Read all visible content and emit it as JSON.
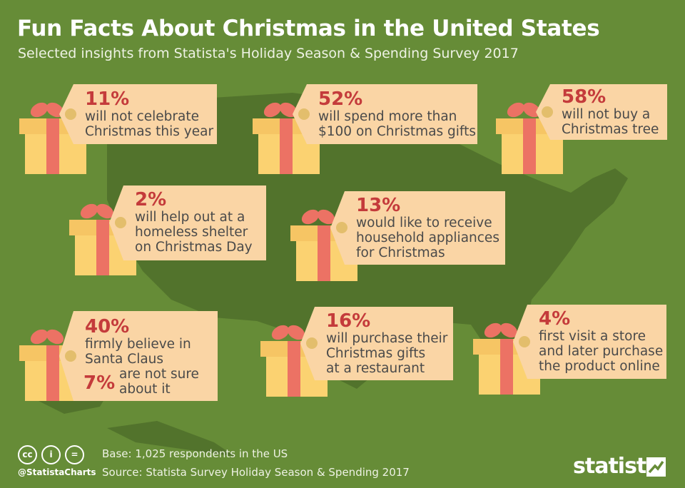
{
  "header": {
    "title": "Fun Facts About Christmas in the United States",
    "subtitle": "Selected insights from Statista's Holiday Season & Spending Survey 2017"
  },
  "facts": [
    {
      "pct": "11%",
      "lines": [
        "will not celebrate",
        "Christmas this year"
      ]
    },
    {
      "pct": "52%",
      "lines": [
        "will spend more than",
        "$100 on Christmas gifts"
      ]
    },
    {
      "pct": "58%",
      "lines": [
        "will not buy a",
        "Christmas tree"
      ]
    },
    {
      "pct": "2%",
      "lines": [
        "will help out at a",
        "homeless shelter",
        "on Christmas Day"
      ]
    },
    {
      "pct": "13%",
      "lines": [
        "would like to receive",
        "household appliances",
        "for Christmas"
      ]
    },
    {
      "pct": "40%",
      "lines": [
        "firmly believe in",
        "Santa Claus"
      ],
      "pct2": "7%",
      "lines2": [
        "are not sure",
        "about it"
      ]
    },
    {
      "pct": "16%",
      "lines": [
        "will purchase their",
        "Christmas gifts",
        "at a restaurant"
      ]
    },
    {
      "pct": "4%",
      "lines": [
        "first visit a store",
        "and later purchase",
        "the product online"
      ]
    }
  ],
  "footer": {
    "handle": "@StatistaCharts",
    "base": "Base: 1,025 respondents in the US",
    "source": "Source: Statista Survey Holiday Season & Spending 2017",
    "logo": "statista",
    "cc_icons": [
      "cc",
      "i",
      "="
    ]
  },
  "colors": {
    "background": "#668c37",
    "map": "#52732c",
    "tag": "#fad5a5",
    "accent": "#c43b3b",
    "gift_box": "#fbd271",
    "ribbon": "#ec7264"
  }
}
